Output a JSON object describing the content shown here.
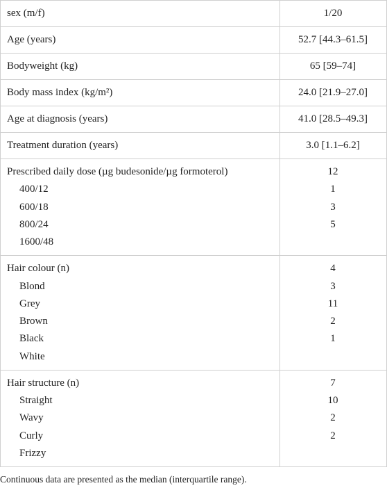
{
  "table": {
    "groups": [
      {
        "rows": [
          [
            "sex (m/f)",
            "1/20"
          ]
        ]
      },
      {
        "rows": [
          [
            "Age (years)",
            "52.7 [44.3–61.5]"
          ]
        ]
      },
      {
        "rows": [
          [
            "Bodyweight (kg)",
            "65 [59–74]"
          ]
        ]
      },
      {
        "rows": [
          [
            "Body mass index (kg/m²)",
            "24.0 [21.9–27.0]"
          ]
        ]
      },
      {
        "rows": [
          [
            "Age at diagnosis (years)",
            "41.0 [28.5–49.3]"
          ]
        ]
      },
      {
        "rows": [
          [
            "Treatment duration (years)",
            "3.0 [1.1–6.2]"
          ]
        ]
      },
      {
        "rows": [
          [
            "Prescribed daily dose (µg budesonide/µg formoterol)",
            "12"
          ],
          [
            "400/12",
            "1"
          ],
          [
            "600/18",
            "3"
          ],
          [
            "800/24",
            "5"
          ],
          [
            "1600/48",
            null
          ]
        ]
      },
      {
        "rows": [
          [
            "Hair colour (n)",
            "4"
          ],
          [
            "Blond",
            "3"
          ],
          [
            "Grey",
            "11"
          ],
          [
            "Brown",
            "2"
          ],
          [
            "Black",
            "1"
          ],
          [
            "White",
            null
          ]
        ]
      },
      {
        "rows": [
          [
            "Hair structure (n)",
            "7"
          ],
          [
            "Straight",
            "10"
          ],
          [
            "Wavy",
            "2"
          ],
          [
            "Curly",
            "2"
          ],
          [
            "Frizzy",
            null
          ]
        ]
      }
    ]
  },
  "footnote": "Continuous data are presented as the median (interquartile range)."
}
